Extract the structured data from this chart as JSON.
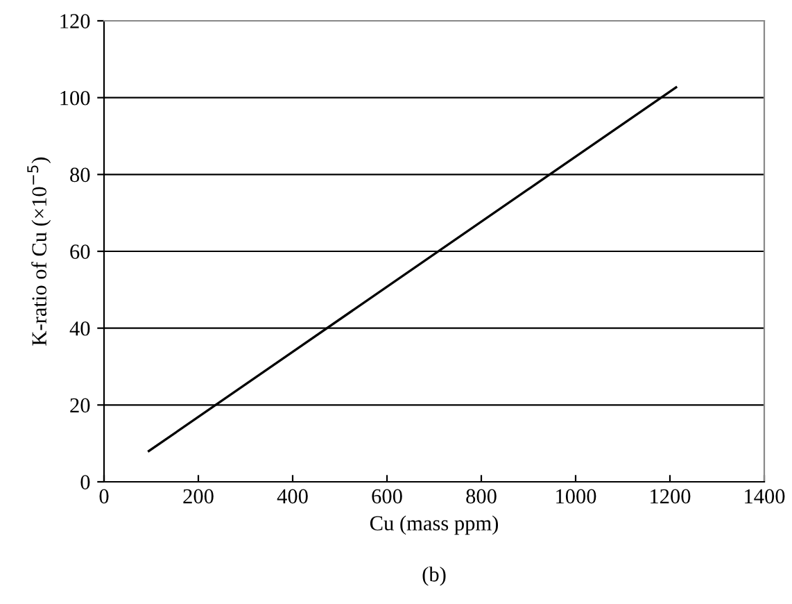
{
  "chart_data": {
    "type": "line",
    "xlabel": "Cu (mass ppm)",
    "ylabel": "K-ratio of Cu (×10$^{−5}$)",
    "annotations": [
      "(b)"
    ],
    "series": [
      {
        "color": "#000000",
        "x": [
          95,
          1213
        ],
        "values": [
          8,
          102.7
        ]
      }
    ],
    "xlim": [
      0,
      1400
    ],
    "xticks": [
      0,
      200,
      400,
      600,
      800,
      1000,
      1200,
      1400
    ],
    "ylim": [
      0,
      120
    ],
    "yticks": [
      0,
      20,
      40,
      60,
      80,
      100,
      120
    ],
    "grid": "y",
    "marker": "none",
    "line_style": "solid"
  }
}
